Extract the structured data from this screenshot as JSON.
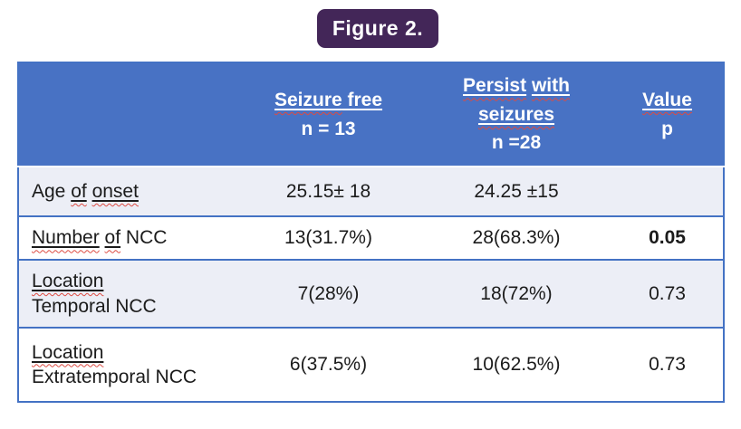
{
  "figure_label": "Figure 2.",
  "colors": {
    "badge_purple": "#432658",
    "header_blue": "#4872C4",
    "border_blue": "#4472C4",
    "banded_row": "#ECEEF6",
    "spellcheck_red": "#DD4B42",
    "header_text": "#ffffff",
    "body_text": "#1b1b1b"
  },
  "table": {
    "header": {
      "row_label": [],
      "seizure_free": [
        {
          "t": "Seizure",
          "u": true,
          "w": true
        },
        {
          "t": " free",
          "u": true
        },
        {
          "br": true
        },
        {
          "t": "n = 13"
        }
      ],
      "persist": [
        {
          "t": "Persist",
          "u": true,
          "w": true
        },
        {
          "t": " "
        },
        {
          "t": "with",
          "u": true,
          "w": true
        },
        {
          "br": true
        },
        {
          "t": "seizures",
          "u": true,
          "w": true
        },
        {
          "br": true
        },
        {
          "t": "n =28"
        }
      ],
      "p_value": [
        {
          "t": "Value",
          "u": true,
          "w": true
        },
        {
          "br": true
        },
        {
          "t": "p"
        }
      ]
    },
    "rows": [
      {
        "label": [
          {
            "t": "Age "
          },
          {
            "t": "of",
            "u": true,
            "w": true
          },
          {
            "t": " "
          },
          {
            "t": "onset",
            "u": true,
            "w": true
          }
        ],
        "seizure_free": [
          {
            "t": "25.15± 18"
          }
        ],
        "persist": [
          {
            "t": "24.25 ±15"
          }
        ],
        "p": []
      },
      {
        "label": [
          {
            "t": "Number",
            "u": true,
            "w": true
          },
          {
            "t": " "
          },
          {
            "t": "of",
            "u": true,
            "w": true
          },
          {
            "t": " NCC"
          }
        ],
        "seizure_free": [
          {
            "t": "13(31.7%)"
          }
        ],
        "persist": [
          {
            "t": "28(68.3%)"
          }
        ],
        "p": [
          {
            "t": "0.05",
            "b": true
          }
        ]
      },
      {
        "label": [
          {
            "t": "Location",
            "u": true,
            "w": true
          },
          {
            "br": true
          },
          {
            "t": "Temporal NCC"
          }
        ],
        "seizure_free": [
          {
            "t": "7(28%)"
          }
        ],
        "persist": [
          {
            "t": "18(72%)"
          }
        ],
        "p": [
          {
            "t": "0.73"
          }
        ]
      },
      {
        "label": [
          {
            "t": "Location",
            "u": true,
            "w": true
          },
          {
            "br": true
          },
          {
            "t": "Extratemporal NCC"
          }
        ],
        "seizure_free": [
          {
            "t": "6(37.5%)"
          }
        ],
        "persist": [
          {
            "t": "10(62.5%)"
          }
        ],
        "p": [
          {
            "t": "0.73"
          }
        ]
      }
    ]
  }
}
